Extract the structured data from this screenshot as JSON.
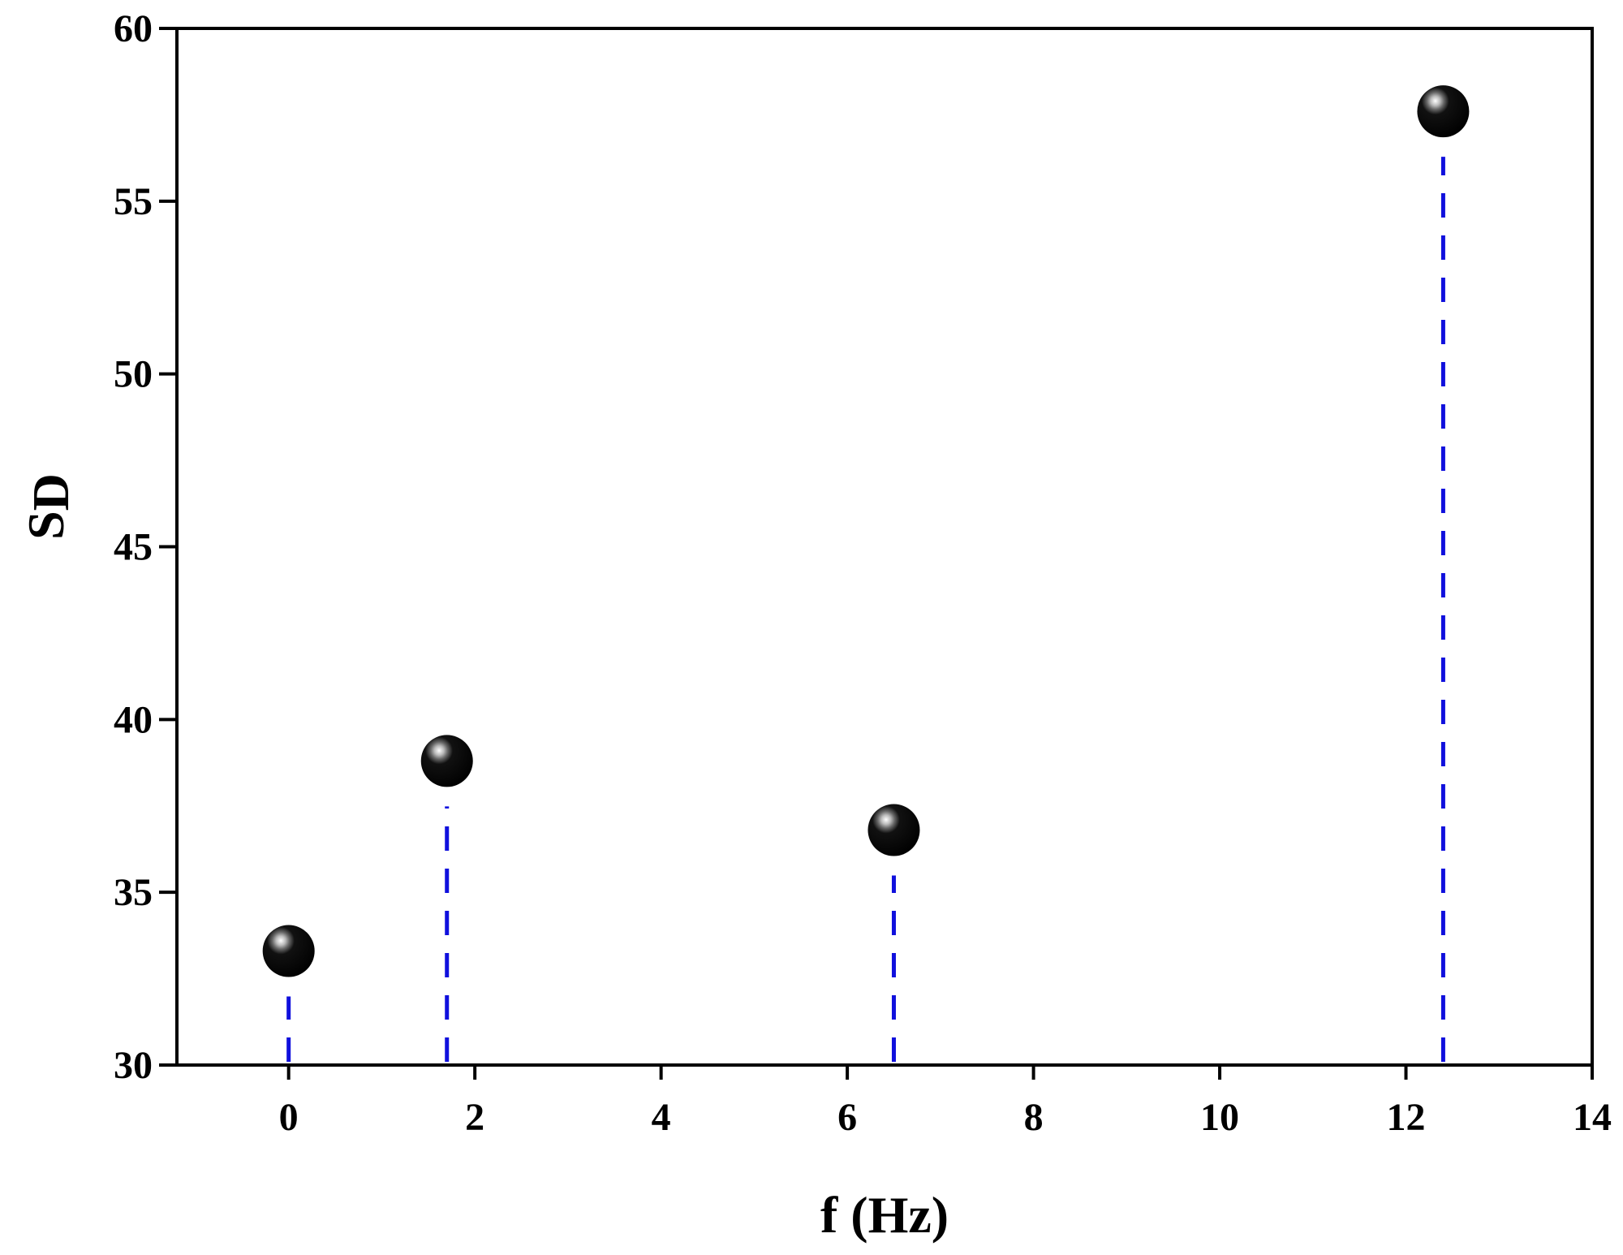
{
  "chart_data": {
    "type": "scatter",
    "xlabel": "f (Hz)",
    "ylabel_main": "S",
    "ylabel_sub": "D",
    "xlim": [
      -1.2,
      14
    ],
    "ylim": [
      30,
      60
    ],
    "xticks": [
      0,
      2,
      4,
      6,
      8,
      10,
      12,
      14
    ],
    "yticks": [
      30,
      35,
      40,
      45,
      50,
      55,
      60
    ],
    "x": [
      0,
      1.7,
      6.5,
      12.4
    ],
    "y": [
      33.3,
      38.8,
      36.8,
      57.6
    ],
    "grid": false,
    "legend": "none",
    "stem_style": "dashed",
    "colors": {
      "marker": "#000000",
      "marker_highlight": "#cccccc",
      "stem": "#1010dd",
      "axis": "#000000"
    }
  }
}
